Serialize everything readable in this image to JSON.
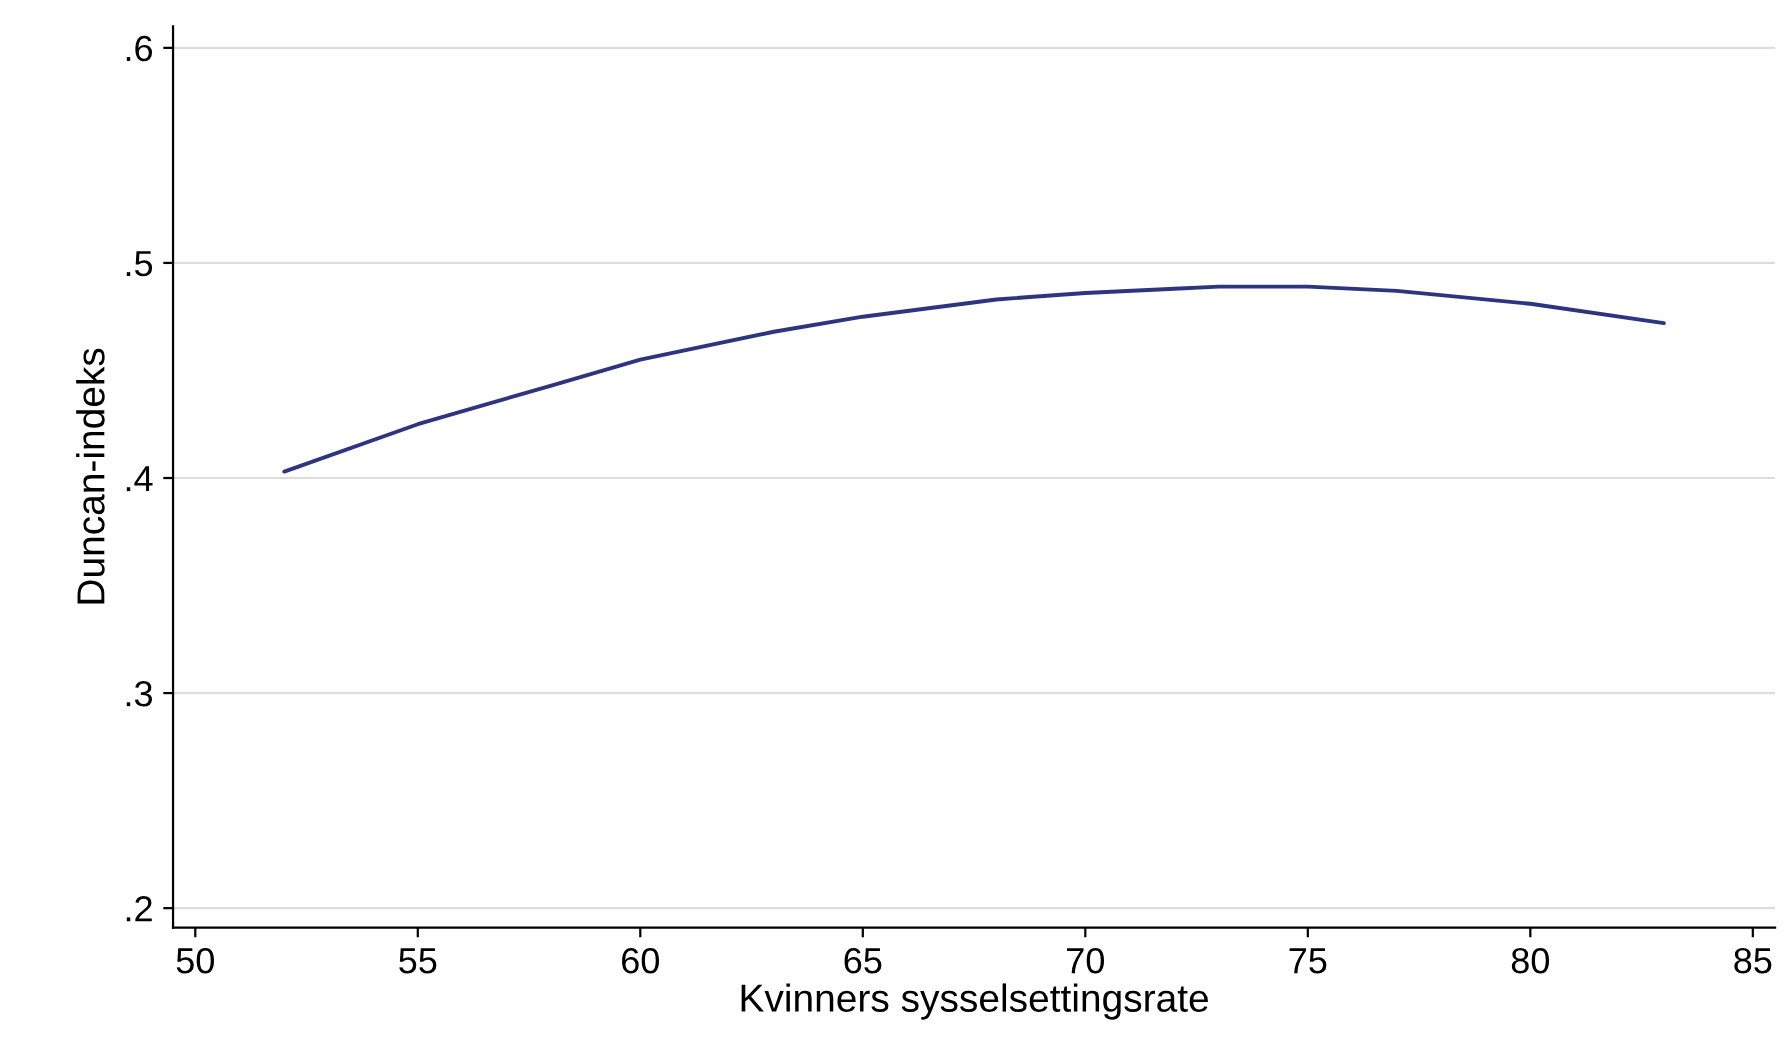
{
  "chart_data": {
    "type": "line",
    "xlabel": "Kvinners sysselsettingsrate",
    "ylabel": "Duncan-indeks",
    "series": [
      {
        "color": "#2e3580",
        "x": [
          52,
          55,
          58,
          60,
          63,
          65,
          68,
          70,
          72,
          73,
          75,
          77,
          80,
          83
        ],
        "values": [
          0.403,
          0.425,
          0.443,
          0.455,
          0.468,
          0.475,
          0.483,
          0.486,
          0.488,
          0.489,
          0.489,
          0.487,
          0.481,
          0.472
        ]
      }
    ],
    "xlim": [
      49.5,
      85.5
    ],
    "xticks": [
      50,
      55,
      60,
      65,
      70,
      75,
      80,
      85
    ],
    "ylim": [
      0.191,
      0.61
    ],
    "yticks": [
      {
        "value": 0.2,
        "label": ".2"
      },
      {
        "value": 0.3,
        "label": ".3"
      },
      {
        "value": 0.4,
        "label": ".4"
      },
      {
        "value": 0.5,
        "label": ".5"
      },
      {
        "value": 0.6,
        "label": ".6"
      }
    ],
    "grid": "y"
  }
}
